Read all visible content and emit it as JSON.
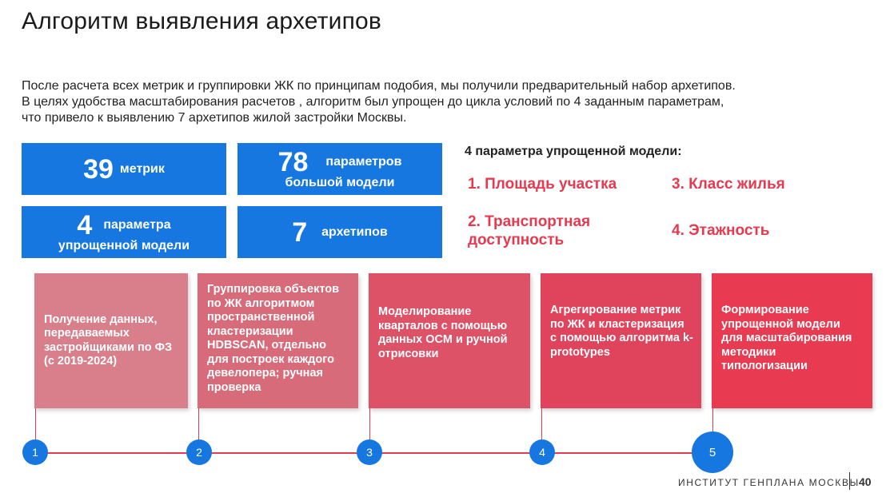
{
  "slide": {
    "title": "Алгоритм выявления архетипов",
    "intro_lines": [
      "После расчета всех метрик и группировки ЖК по принципам подобия, мы получили предварительный набор архетипов.",
      "В целях удобства масштабирования расчетов , алгоритм был упрощен до цикла условий по 4 заданным параметрам,",
      "что привело к выявлению 7 архетипов жилой застройки Москвы."
    ]
  },
  "stats": [
    {
      "number": "39",
      "label_1": "метрик",
      "label_2": ""
    },
    {
      "number": "78",
      "label_1": "параметров",
      "label_2": "большой модели"
    },
    {
      "number": "4",
      "label_1": "параметра",
      "label_2": "упрощенной модели"
    },
    {
      "number": "7",
      "label_1": "архетипов",
      "label_2": ""
    }
  ],
  "params": {
    "title": "4 параметра упрощенной модели:",
    "items": [
      "1. Площадь участка",
      "2. Транспортная доступность",
      "3. Класс жилья",
      "4. Этажность"
    ],
    "color": "#e63a4f"
  },
  "steps": [
    {
      "number": "1",
      "text": "Получение данных, передаваемых застройщиками по ФЗ (с 2019-2024)"
    },
    {
      "number": "2",
      "text": "Группировка объектов по ЖК алгоритмом пространственной кластеризации HDBSCAN, отдельно для построек каждого девелопера; ручная проверка"
    },
    {
      "number": "3",
      "text": "Моделирование кварталов с помощью данных ОСМ и ручной отрисовки"
    },
    {
      "number": "4",
      "text": "Агрегирование метрик по ЖК и кластеризация с помощью алгоритма k-prototypes"
    },
    {
      "number": "5",
      "text": "Формирование упрощенной модели для масштабирования методики типологизации"
    }
  ],
  "footer": {
    "org": "ИНСТИТУТ ГЕНПЛАНА МОСКВЫ",
    "page": "40"
  },
  "colors": {
    "blue": "#1677e0",
    "accent_red": "#e63a4f"
  }
}
